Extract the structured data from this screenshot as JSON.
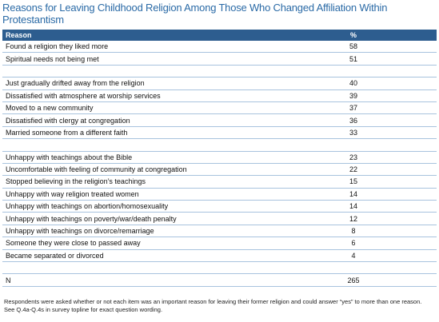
{
  "title": "Reasons for Leaving Childhood Religion Among Those Who Changed Affiliation Within Protestantism",
  "table": {
    "header": [
      "Reason",
      "%"
    ],
    "groups": [
      [
        [
          "Found a religion they liked more",
          58
        ],
        [
          "Spiritual needs not being met",
          51
        ]
      ],
      [
        [
          "Just gradually drifted away from the religion",
          40
        ],
        [
          "Dissatisfied with atmosphere at worship services",
          39
        ],
        [
          "Moved to a new community",
          37
        ],
        [
          "Dissatisfied with clergy at congregation",
          36
        ],
        [
          "Married someone from a different faith",
          33
        ]
      ],
      [
        [
          "Unhappy with teachings about the Bible",
          23
        ],
        [
          "Uncomfortable with feeling of community at congregation",
          22
        ],
        [
          "Stopped believing in the religion’s teachings",
          15
        ],
        [
          "Unhappy with way religion treated women",
          14
        ],
        [
          "Unhappy with teachings on abortion/homosexuality",
          14
        ],
        [
          "Unhappy with teachings on poverty/war/death penalty",
          12
        ],
        [
          "Unhappy with teachings on divorce/remarriage",
          8
        ],
        [
          "Someone they were close to passed away",
          6
        ],
        [
          "Became separated or divorced",
          4
        ]
      ]
    ],
    "total": [
      "N",
      265
    ]
  },
  "footnote": "Respondents were asked whether or not each item was an important reason for leaving their former religion and could answer “yes” to more than one reason. See Q.4a-Q.4s in survey topline for exact question wording."
}
